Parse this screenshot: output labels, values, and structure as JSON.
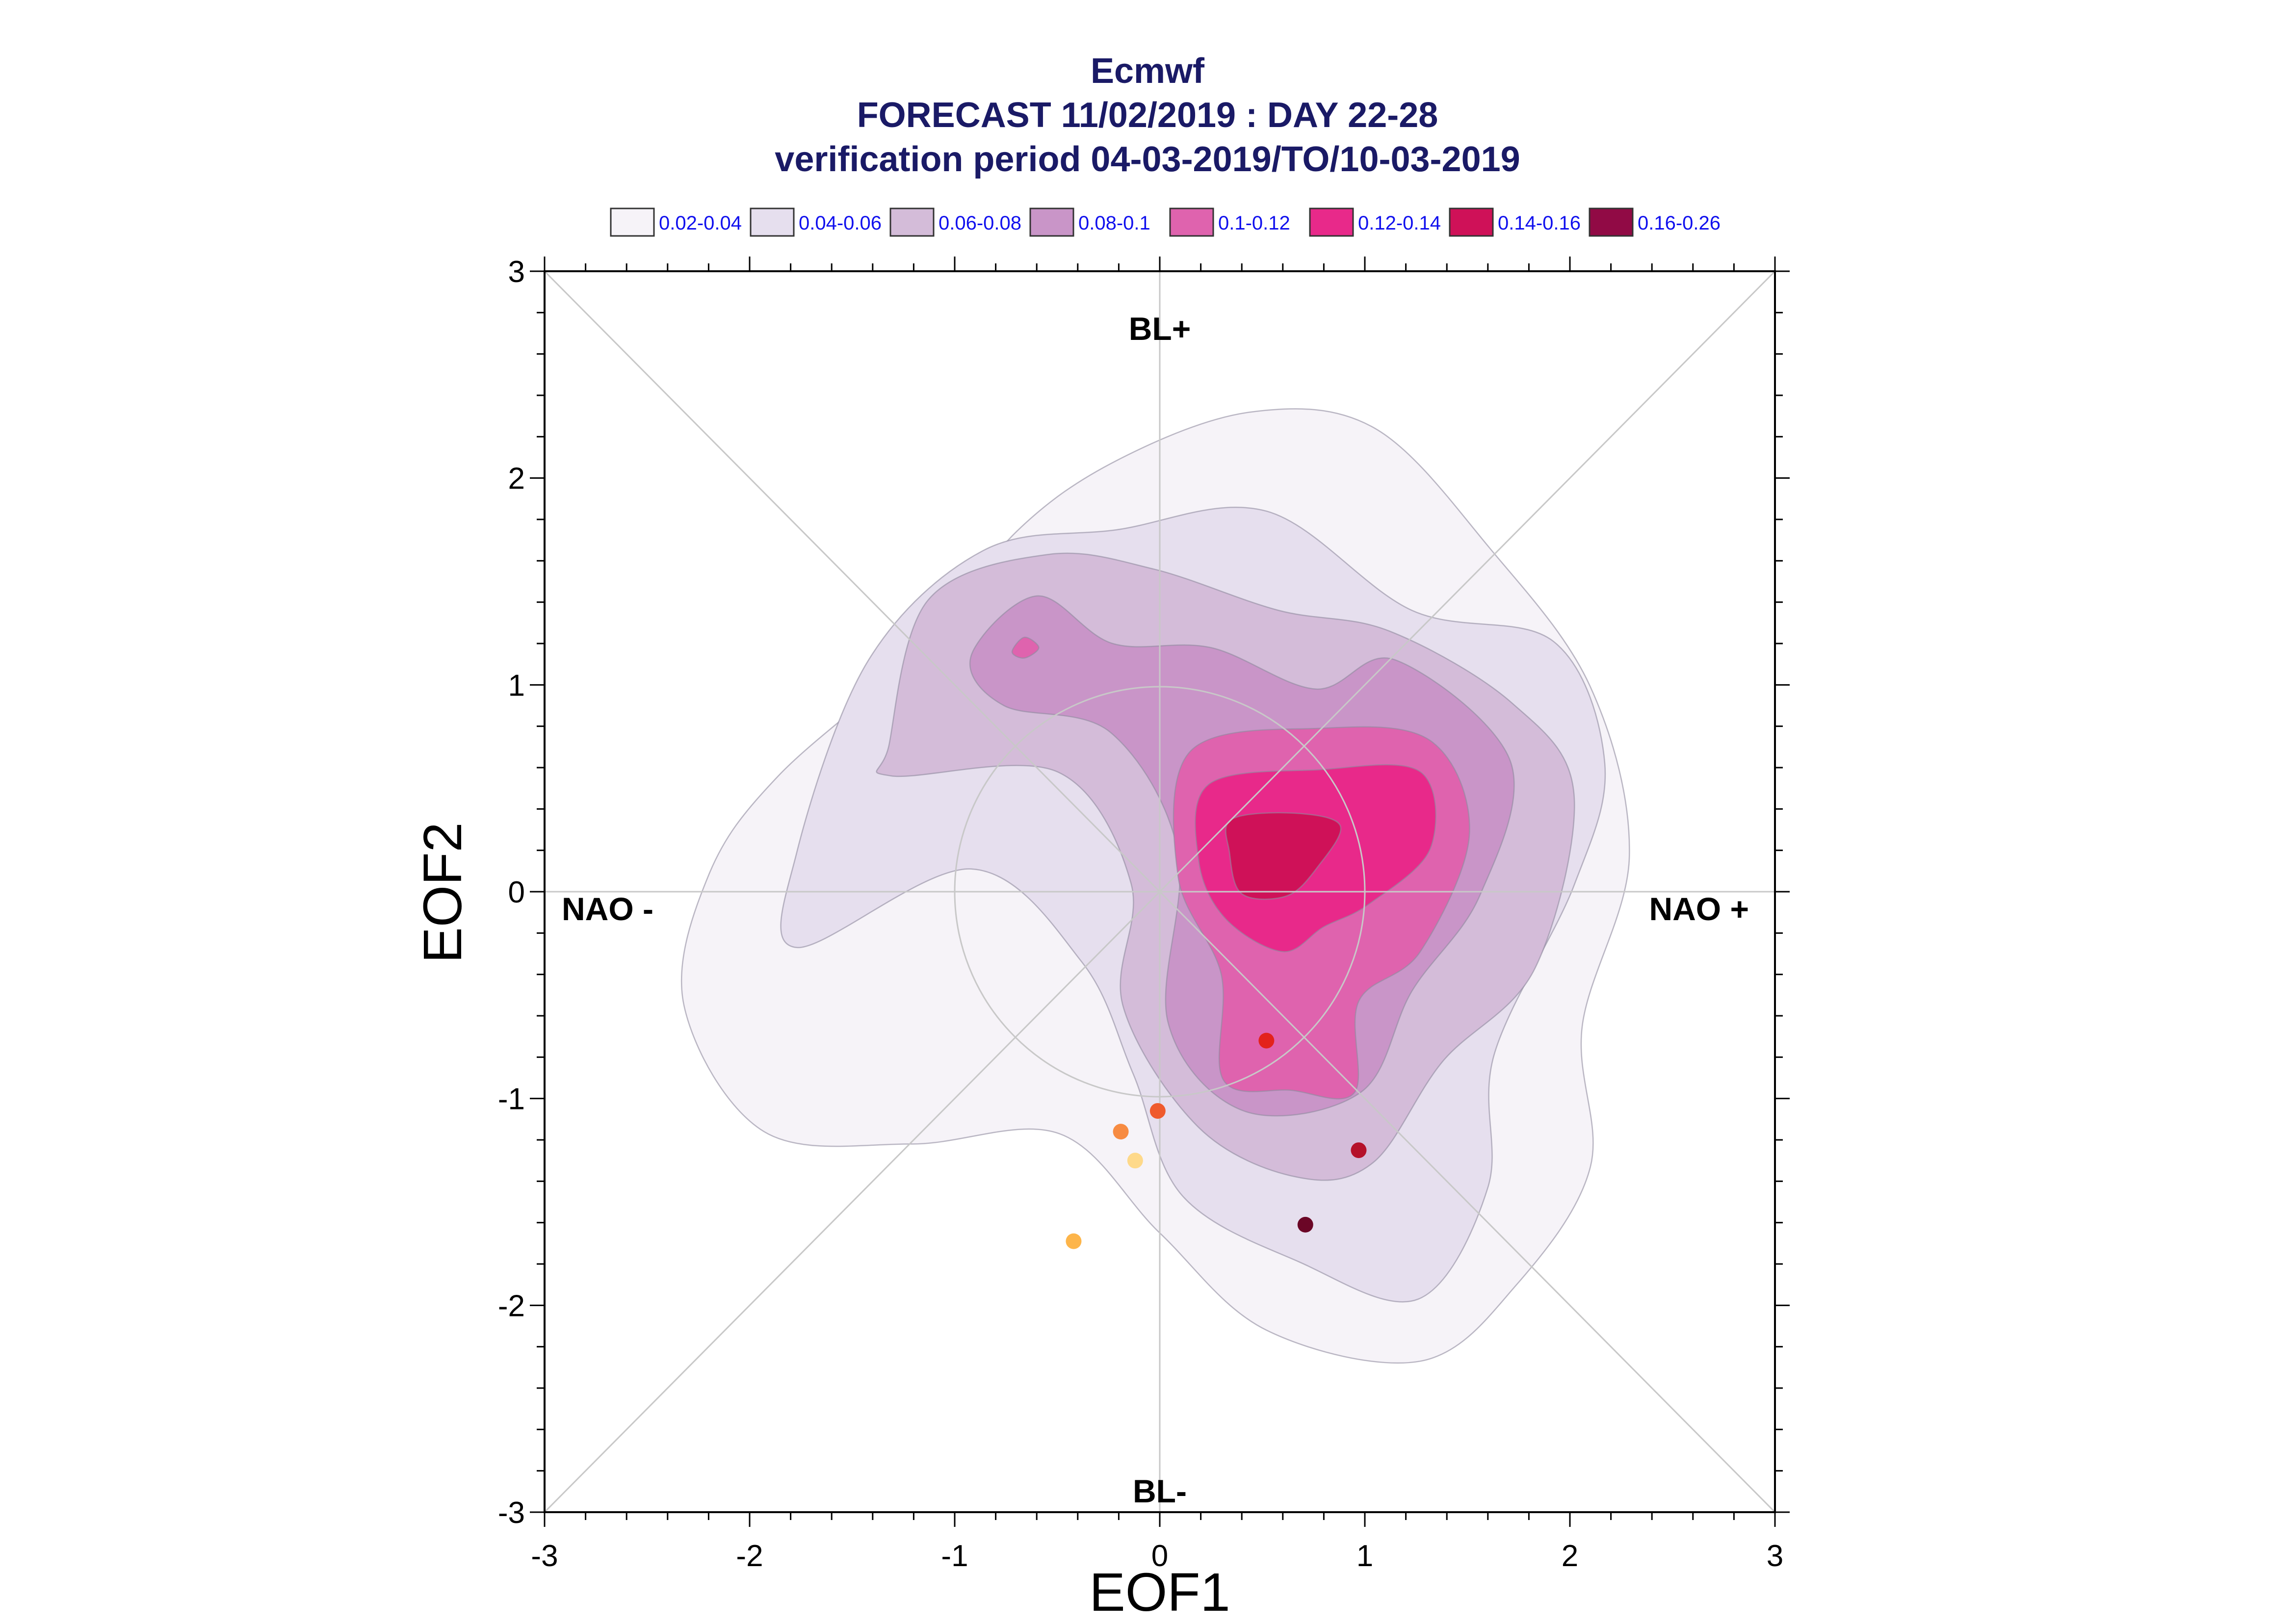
{
  "titles": {
    "line1": "Ecmwf",
    "line2": "FORECAST 11/02/2019 : DAY 22-28",
    "line3": "verification period 04-03-2019/TO/10-03-2019"
  },
  "legend": {
    "entries": [
      {
        "label": "0.02-0.04",
        "color": "#f6f3f8"
      },
      {
        "label": "0.04-0.06",
        "color": "#e6dfee"
      },
      {
        "label": "0.06-0.08",
        "color": "#d4bcd9"
      },
      {
        "label": "0.08-0.1",
        "color": "#c995c8"
      },
      {
        "label": "0.1-0.12",
        "color": "#df63ae"
      },
      {
        "label": "0.12-0.14",
        "color": "#e8298a"
      },
      {
        "label": "0.14-0.16",
        "color": "#cf1158"
      },
      {
        "label": "0.16-0.26",
        "color": "#910a45"
      }
    ]
  },
  "regimes": {
    "top": "BL+",
    "bottom": "BL-",
    "left": "NAO -",
    "right": "NAO +"
  },
  "chart_data": {
    "type": "scatter",
    "xlabel": "EOF1",
    "ylabel": "EOF2",
    "xlim": [
      -3,
      3
    ],
    "ylim": [
      -3,
      3
    ],
    "xticks": [
      "-3",
      "-2",
      "-1",
      "0",
      "1",
      "2",
      "3"
    ],
    "yticks": [
      "-3",
      "-2",
      "-1",
      "0",
      "1",
      "2",
      "3"
    ],
    "points": [
      {
        "x": -0.42,
        "y": -1.69,
        "color": "#fdb54a"
      },
      {
        "x": -0.12,
        "y": -1.3,
        "color": "#fed98a"
      },
      {
        "x": -0.19,
        "y": -1.16,
        "color": "#f78b42"
      },
      {
        "x": -0.01,
        "y": -1.06,
        "color": "#ef5a2c"
      },
      {
        "x": 0.52,
        "y": -0.72,
        "color": "#e3221c"
      },
      {
        "x": 0.97,
        "y": -1.25,
        "color": "#b5112a"
      },
      {
        "x": 0.71,
        "y": -1.61,
        "color": "#6b0626"
      }
    ],
    "contour_levels": [
      "0.02-0.04",
      "0.04-0.06",
      "0.06-0.08",
      "0.08-0.1",
      "0.1-0.12",
      "0.12-0.14",
      "0.14-0.16",
      "0.16-0.26"
    ],
    "contours": [
      {
        "level": 0,
        "color": "#f6f3f8",
        "polygons": [
          [
            [
              -1.16,
              1.17
            ],
            [
              -0.7,
              1.74
            ],
            [
              -0.2,
              2.09
            ],
            [
              0.45,
              2.32
            ],
            [
              1.05,
              2.24
            ],
            [
              1.61,
              1.66
            ],
            [
              2.1,
              0.99
            ],
            [
              2.29,
              0.17
            ],
            [
              2.06,
              -0.65
            ],
            [
              2.1,
              -1.33
            ],
            [
              1.74,
              -1.9
            ],
            [
              1.27,
              -2.27
            ],
            [
              0.52,
              -2.12
            ],
            [
              0,
              -1.65
            ],
            [
              -0.49,
              -1.17
            ],
            [
              -1.21,
              -1.22
            ],
            [
              -1.93,
              -1.16
            ],
            [
              -2.32,
              -0.55
            ],
            [
              -2.2,
              0.08
            ],
            [
              -1.86,
              0.56
            ]
          ]
        ]
      },
      {
        "level": 1,
        "color": "#e6dfee",
        "polygons": [
          [
            [
              -1.77,
              0.19
            ],
            [
              -1.42,
              1.12
            ],
            [
              -0.86,
              1.65
            ],
            [
              -0.21,
              1.75
            ],
            [
              0.52,
              1.84
            ],
            [
              1.23,
              1.36
            ],
            [
              1.92,
              1.21
            ],
            [
              2.17,
              0.62
            ],
            [
              2.02,
              0.03
            ],
            [
              1.63,
              -0.79
            ],
            [
              1.6,
              -1.43
            ],
            [
              1.26,
              -1.97
            ],
            [
              0.68,
              -1.79
            ],
            [
              0.11,
              -1.47
            ],
            [
              -0.13,
              -0.88
            ],
            [
              -0.38,
              -0.34
            ],
            [
              -0.92,
              0.11
            ],
            [
              -1.77,
              -0.27
            ]
          ]
        ]
      },
      {
        "level": 2,
        "color": "#d4bcd9",
        "polygons": [
          [
            [
              -1.32,
              0.71
            ],
            [
              -1.13,
              1.41
            ],
            [
              -0.55,
              1.63
            ],
            [
              -0.03,
              1.56
            ],
            [
              0.58,
              1.36
            ],
            [
              1.12,
              1.26
            ],
            [
              1.72,
              0.91
            ],
            [
              2.02,
              0.47
            ],
            [
              1.83,
              -0.37
            ],
            [
              1.38,
              -0.82
            ],
            [
              1.04,
              -1.31
            ],
            [
              0.67,
              -1.38
            ],
            [
              0.19,
              -1.14
            ],
            [
              -0.18,
              -0.55
            ],
            [
              -0.14,
              0.04
            ],
            [
              -0.5,
              0.58
            ],
            [
              -1.31,
              0.56
            ]
          ]
        ]
      },
      {
        "level": 3,
        "color": "#c995c8",
        "polygons": [
          [
            [
              -0.92,
              1.14
            ],
            [
              -0.6,
              1.43
            ],
            [
              -0.23,
              1.2
            ],
            [
              0.25,
              1.18
            ],
            [
              0.76,
              0.98
            ],
            [
              1.15,
              1.12
            ],
            [
              1.71,
              0.63
            ],
            [
              1.56,
              -0.02
            ],
            [
              1.23,
              -0.48
            ],
            [
              0.98,
              -0.97
            ],
            [
              0.41,
              -1.06
            ],
            [
              0.04,
              -0.63
            ],
            [
              0.09,
              0.19
            ],
            [
              -0.24,
              0.77
            ],
            [
              -0.76,
              0.9
            ]
          ]
        ]
      },
      {
        "level": 3,
        "color": "#df63ae",
        "polygons": [
          [
            [
              -0.72,
              1.16
            ],
            [
              -0.66,
              1.23
            ],
            [
              -0.59,
              1.18
            ],
            [
              -0.66,
              1.13
            ]
          ]
        ]
      },
      {
        "level": 4,
        "color": "#df63ae",
        "polygons": [
          [
            [
              0.15,
              0.68
            ],
            [
              0.78,
              0.79
            ],
            [
              1.32,
              0.73
            ],
            [
              1.51,
              0.28
            ],
            [
              1.27,
              -0.29
            ],
            [
              0.97,
              -0.53
            ],
            [
              0.95,
              -0.97
            ],
            [
              0.64,
              -0.96
            ],
            [
              0.31,
              -0.91
            ],
            [
              0.3,
              -0.4
            ],
            [
              0.09,
              0.07
            ]
          ]
        ]
      },
      {
        "level": 5,
        "color": "#e8298a",
        "polygons": [
          [
            [
              0.24,
              0.52
            ],
            [
              0.78,
              0.59
            ],
            [
              1.27,
              0.58
            ],
            [
              1.32,
              0.21
            ],
            [
              1.02,
              -0.06
            ],
            [
              0.8,
              -0.17
            ],
            [
              0.6,
              -0.29
            ],
            [
              0.32,
              -0.13
            ],
            [
              0.19,
              0.15
            ]
          ]
        ]
      },
      {
        "level": 6,
        "color": "#cf1158",
        "polygons": [
          [
            [
              0.35,
              0.35
            ],
            [
              0.65,
              0.38
            ],
            [
              0.88,
              0.32
            ],
            [
              0.77,
              0.12
            ],
            [
              0.62,
              -0.02
            ],
            [
              0.4,
              -0.01
            ],
            [
              0.34,
              0.19
            ]
          ]
        ]
      }
    ]
  }
}
